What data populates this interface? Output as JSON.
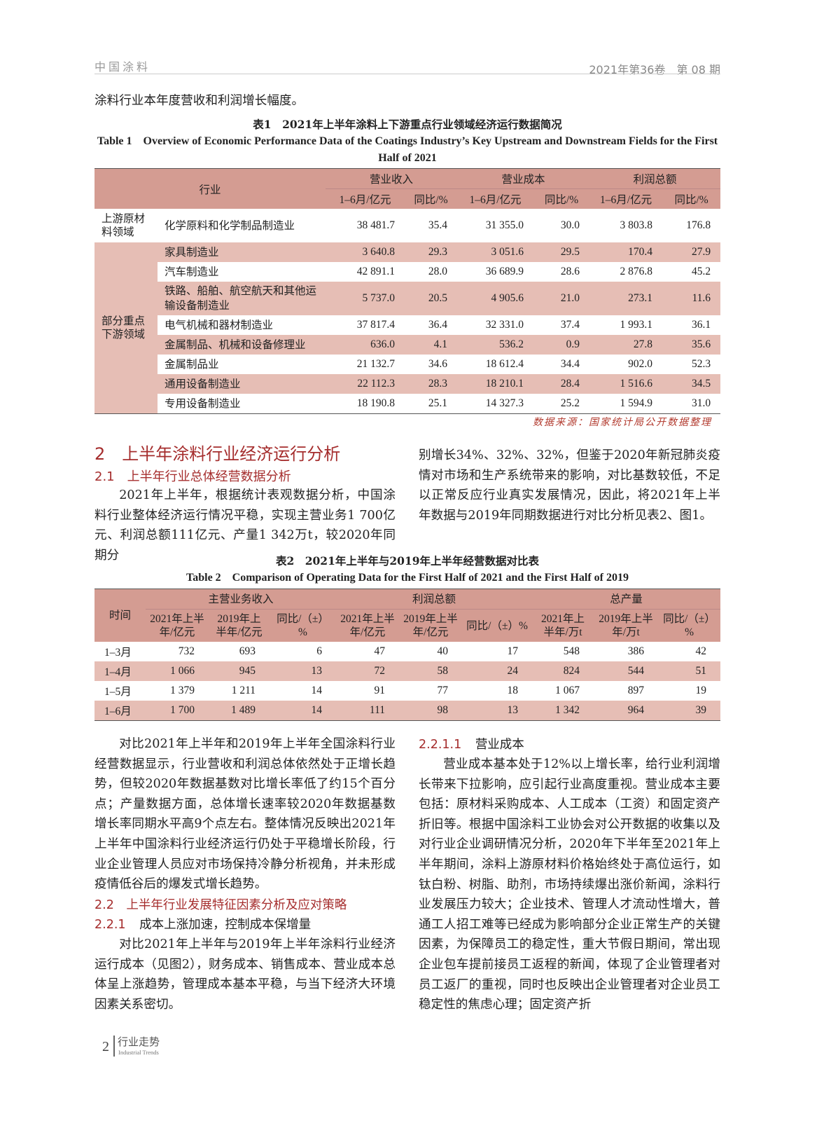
{
  "header": {
    "journal": "中国涂料",
    "issue": "2021年第36卷　第 08 期"
  },
  "intro_line": "涂料行业本年度营收和利润增长幅度。",
  "table1": {
    "caption_cn": "表1　2021年上半年涂料上下游重点行业领域经济运行数据简况",
    "caption_en": "Table 1　Overview of Economic Performance Data of the Coatings Industry’s Key Upstream and Downstream Fields for the First Half of 2021",
    "col_industry": "行业",
    "groups": [
      "营业收入",
      "营业成本",
      "利润总额"
    ],
    "sub": [
      "1–6月/亿元",
      "同比/%"
    ],
    "cat_upstream": "上游原材料领域",
    "cat_downstream": "部分重点下游领域",
    "rows": [
      {
        "name": "化学原料和化学制品制造业",
        "v": [
          "38 481.7",
          "35.4",
          "31 355.0",
          "30.0",
          "3 803.8",
          "176.8"
        ]
      },
      {
        "name": "家具制造业",
        "v": [
          "3 640.8",
          "29.3",
          "3 051.6",
          "29.5",
          "170.4",
          "27.9"
        ]
      },
      {
        "name": "汽车制造业",
        "v": [
          "42 891.1",
          "28.0",
          "36 689.9",
          "28.6",
          "2 876.8",
          "45.2"
        ]
      },
      {
        "name": "铁路、船舶、航空航天和其他运输设备制造业",
        "v": [
          "5 737.0",
          "20.5",
          "4 905.6",
          "21.0",
          "273.1",
          "11.6"
        ]
      },
      {
        "name": "电气机械和器材制造业",
        "v": [
          "37 817.4",
          "36.4",
          "32 331.0",
          "37.4",
          "1 993.1",
          "36.1"
        ]
      },
      {
        "name": "金属制品、机械和设备修理业",
        "v": [
          "636.0",
          "4.1",
          "536.2",
          "0.9",
          "27.8",
          "35.6"
        ]
      },
      {
        "name": "金属制品业",
        "v": [
          "21 132.7",
          "34.6",
          "18 612.4",
          "34.4",
          "902.0",
          "52.3"
        ]
      },
      {
        "name": "通用设备制造业",
        "v": [
          "22 112.3",
          "28.3",
          "18 210.1",
          "28.4",
          "1 516.6",
          "34.5"
        ]
      },
      {
        "name": "专用设备制造业",
        "v": [
          "18 190.8",
          "25.1",
          "14 327.3",
          "25.2",
          "1 594.9",
          "31.0"
        ]
      }
    ],
    "source": "数据来源：国家统计局公开数据整理"
  },
  "section2": {
    "title": "2　上半年涂料行业经济运行分析",
    "s21": "2.1　上半年行业总体经营数据分析",
    "p1": "2021年上半年，根据统计表观数据分析，中国涂料行业整体经济运行情况平稳，实现主营业务1 700亿元、利润总额111亿元、产量1 342万t，较2020年同期分别增长34%、32%、32%，但鉴于2020年新冠肺炎疫情对市场和生产系统带来的影响，对比基数较低，不足以正常反应行业真实发展情况，因此，将2021年上半年数据与2019年同期数据进行对比分析见表2、图1。",
    "p1a": "2021年上半年，根据统计表观数据分析，中国涂料行业整体经济运行情况平稳，实现主营业务1 700亿元、利润总额111亿元、产量1 342万t，较2020年同期分",
    "p1b": "别增长34%、32%、32%，但鉴于2020年新冠肺炎疫情对市场和生产系统带来的影响，对比基数较低，不足以正常反应行业真实发展情况，因此，将2021年上半年数据与2019年同期数据进行对比分析见表2、图1。"
  },
  "table2": {
    "caption_cn": "表2　2021年上半年与2019年上半年经营数据对比表",
    "caption_en": "Table 2　Comparison of Operating Data for the First Half of 2021 and the First Half of 2019",
    "col_time": "时间",
    "groups": [
      "主营业务收入",
      "利润总额",
      "总产量"
    ],
    "sub": [
      "2021年上半年/亿元",
      "2019年上半年/亿元",
      "同比/（±）%",
      "2021年上半年/亿元",
      "2019年上半年/亿元",
      "同比/（±）%",
      "2021年上半年/万t",
      "2019年上半年/万t",
      "同比/（±）%"
    ],
    "rows": [
      {
        "t": "1–3月",
        "v": [
          "732",
          "693",
          "6",
          "47",
          "40",
          "17",
          "548",
          "386",
          "42"
        ]
      },
      {
        "t": "1–4月",
        "v": [
          "1 066",
          "945",
          "13",
          "72",
          "58",
          "24",
          "824",
          "544",
          "51"
        ]
      },
      {
        "t": "1–5月",
        "v": [
          "1 379",
          "1 211",
          "14",
          "91",
          "77",
          "18",
          "1 067",
          "897",
          "19"
        ]
      },
      {
        "t": "1–6月",
        "v": [
          "1 700",
          "1 489",
          "14",
          "111",
          "98",
          "13",
          "1 342",
          "964",
          "39"
        ]
      }
    ]
  },
  "left_col": {
    "p2": "对比2021年上半年和2019年上半年全国涂料行业经营数据显示，行业营收和利润总体依然处于正增长趋势，但较2020年数据基数对比增长率低了约15个百分点；产量数据方面，总体增长速率较2020年数据基数增长率同期水平高9个点左右。整体情况反映出2021年上半年中国涂料行业经济运行仍处于平稳增长阶段，行业企业管理人员应对市场保持冷静分析视角，并未形成疫情低谷后的爆发式增长趋势。",
    "s22": "2.2　上半年行业发展特征因素分析及应对策略",
    "s221_num": "2.2.1",
    "s221_title": "成本上涨加速，控制成本保增量",
    "p3": "对比2021年上半年与2019年上半年涂料行业经济运行成本（见图2），财务成本、销售成本、营业成本总体呈上涨趋势，管理成本基本平稳，与当下经济大环境因素关系密切。"
  },
  "right_col": {
    "s2211_num": "2.2.1.1",
    "s2211_title": "营业成本",
    "p4": "营业成本基本处于12%以上增长率，给行业利润增长带来下拉影响，应引起行业高度重视。营业成本主要包括：原材料采购成本、人工成本（工资）和固定资产折旧等。根据中国涂料工业协会对公开数据的收集以及对行业企业调研情况分析，2020年下半年至2021年上半年期间，涂料上游原材料价格始终处于高位运行，如钛白粉、树脂、助剂，市场持续爆出涨价新闻，涂料行业发展压力较大；企业技术、管理人才流动性增大，普通工人招工难等已经成为影响部分企业正常生产的关键因素，为保障员工的稳定性，重大节假日期间，常出现企业包车提前接员工返程的新闻，体现了企业管理者对员工返厂的重视，同时也反映出企业管理者对企业员工稳定性的焦虑心理；固定资产折"
  },
  "footer": {
    "page": "2",
    "section": "行业走势",
    "section_en": "Industrial Trends"
  },
  "colors": {
    "table_header": "#d49c92",
    "table_band": "#e6beb5",
    "heading": "#a52d2d"
  }
}
